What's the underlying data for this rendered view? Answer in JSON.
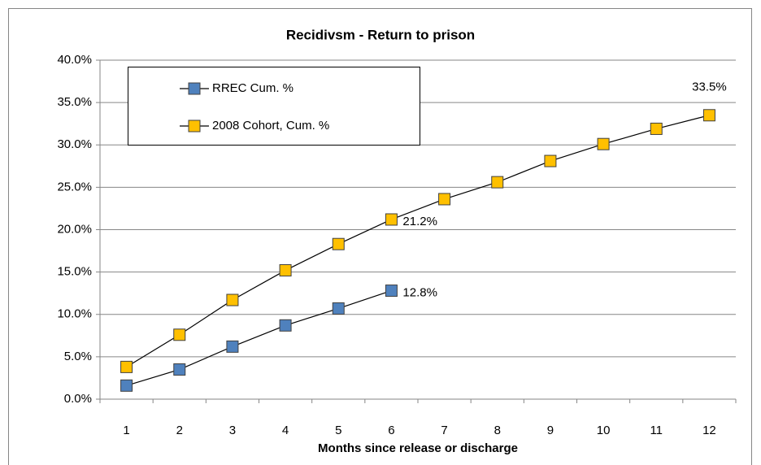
{
  "chart_data": {
    "type": "line",
    "title": "Recidivsm - Return to prison",
    "x_label": "Months since release or discharge",
    "categories": [
      "1",
      "2",
      "3",
      "4",
      "5",
      "6",
      "7",
      "8",
      "9",
      "10",
      "11",
      "12"
    ],
    "series": [
      {
        "name": "RREC Cum. %",
        "color": "#4f81bd",
        "values": [
          1.6,
          3.5,
          6.2,
          8.7,
          10.7,
          12.8,
          null,
          null,
          null,
          null,
          null,
          null
        ],
        "value_labels": [
          null,
          null,
          null,
          null,
          null,
          "12.8%",
          null,
          null,
          null,
          null,
          null,
          null
        ]
      },
      {
        "name": "2008 Cohort, Cum. %",
        "color": "#ffc000",
        "values": [
          3.8,
          7.6,
          11.7,
          15.2,
          18.3,
          21.2,
          23.6,
          25.6,
          28.1,
          30.1,
          31.9,
          33.5
        ],
        "value_labels": [
          null,
          null,
          null,
          null,
          null,
          "21.2%",
          null,
          null,
          null,
          null,
          null,
          "33.5%"
        ]
      }
    ],
    "ylim": [
      0,
      40
    ],
    "yticks": [
      {
        "value": 0,
        "label": "0.0%"
      },
      {
        "value": 5,
        "label": "5.0%"
      },
      {
        "value": 10,
        "label": "10.0%"
      },
      {
        "value": 15,
        "label": "15.0%"
      },
      {
        "value": 20,
        "label": "20.0%"
      },
      {
        "value": 25,
        "label": "25.0%"
      },
      {
        "value": 30,
        "label": "30.0%"
      },
      {
        "value": 35,
        "label": "35.0%"
      },
      {
        "value": 40,
        "label": "40.0%"
      }
    ],
    "grid": true,
    "legend": "upper-left"
  }
}
